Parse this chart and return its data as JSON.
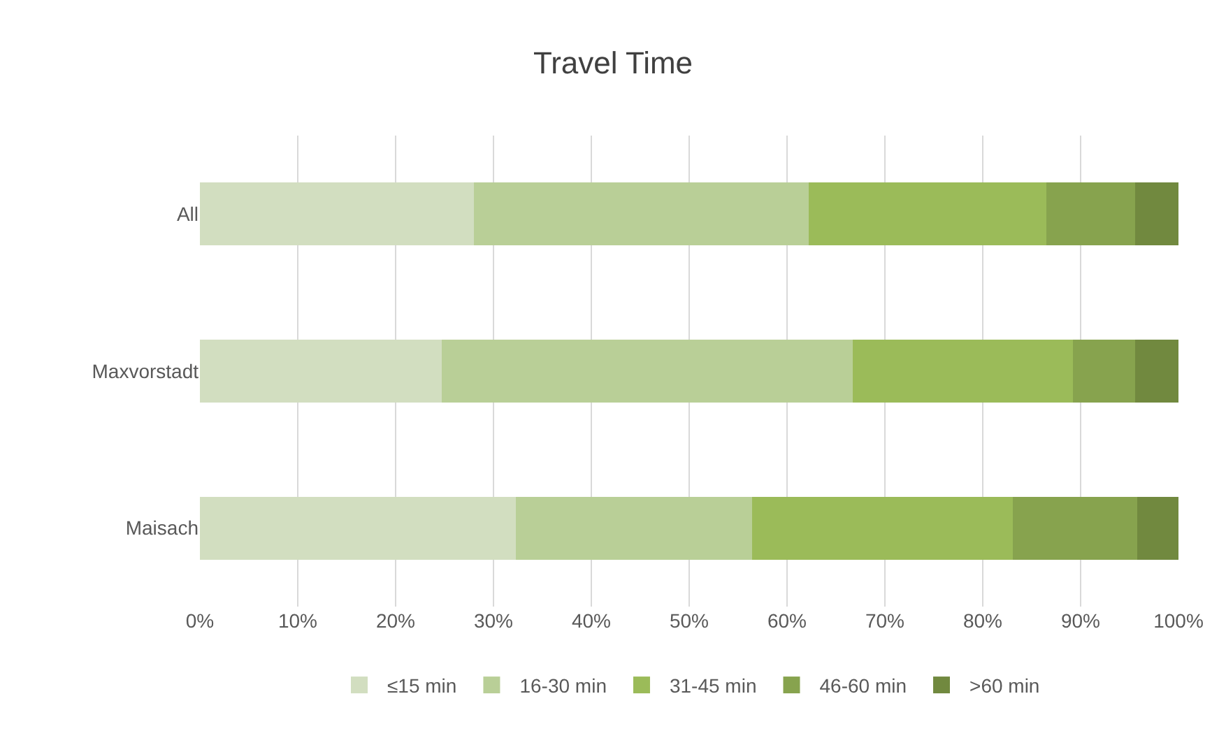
{
  "chart_data": {
    "type": "bar",
    "title": "Travel Time",
    "orientation": "horizontal",
    "stacked": true,
    "categories": [
      "All",
      "Maxvorstadt",
      "Maisach"
    ],
    "series": [
      {
        "name": "≤15 min",
        "color": "#d2dec0",
        "values": [
          28.0,
          24.7,
          32.3
        ]
      },
      {
        "name": "16-30 min",
        "color": "#b9cf97",
        "values": [
          34.2,
          42.0,
          24.1
        ]
      },
      {
        "name": "31-45 min",
        "color": "#9bbb59",
        "values": [
          24.3,
          22.5,
          26.7
        ]
      },
      {
        "name": "46-60 min",
        "color": "#87a34e",
        "values": [
          9.1,
          6.4,
          12.7
        ]
      },
      {
        "name": ">60 min",
        "color": "#71893f",
        "values": [
          4.4,
          4.4,
          4.2
        ]
      }
    ],
    "xlim": [
      0,
      100
    ],
    "xticks": [
      {
        "value": 0,
        "label": "0%"
      },
      {
        "value": 10,
        "label": "10%"
      },
      {
        "value": 20,
        "label": "20%"
      },
      {
        "value": 30,
        "label": "30%"
      },
      {
        "value": 40,
        "label": "40%"
      },
      {
        "value": 50,
        "label": "50%"
      },
      {
        "value": 60,
        "label": "60%"
      },
      {
        "value": 70,
        "label": "70%"
      },
      {
        "value": 80,
        "label": "80%"
      },
      {
        "value": 90,
        "label": "90%"
      },
      {
        "value": 100,
        "label": "100%"
      }
    ],
    "grid": "x",
    "legend": "bottom"
  }
}
